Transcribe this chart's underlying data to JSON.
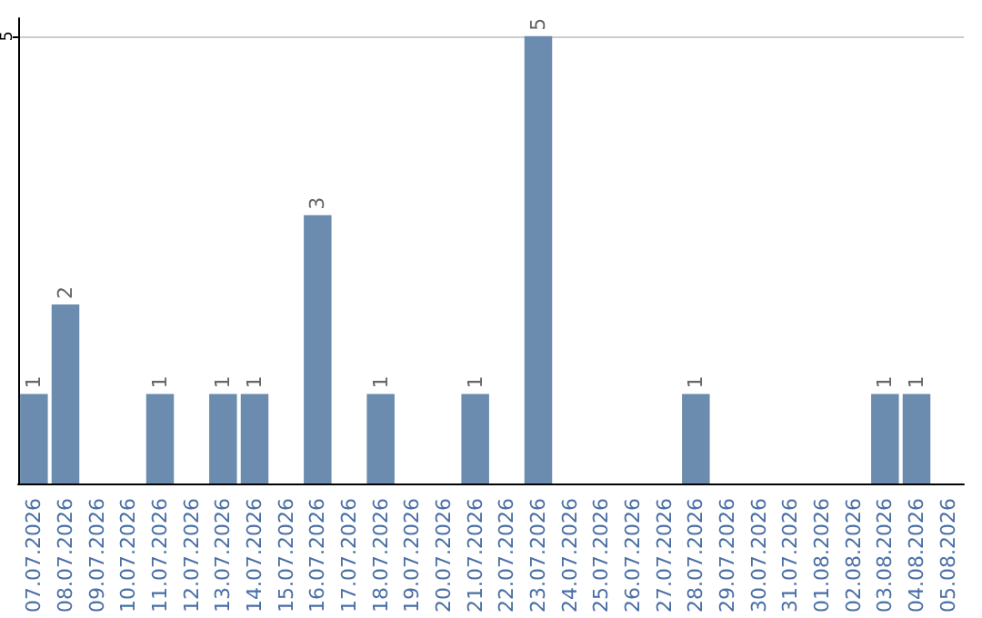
{
  "chart_data": {
    "type": "bar",
    "categories": [
      "07.07.2026",
      "08.07.2026",
      "09.07.2026",
      "10.07.2026",
      "11.07.2026",
      "12.07.2026",
      "13.07.2026",
      "14.07.2026",
      "15.07.2026",
      "16.07.2026",
      "17.07.2026",
      "18.07.2026",
      "19.07.2026",
      "20.07.2026",
      "21.07.2026",
      "22.07.2026",
      "23.07.2026",
      "24.07.2026",
      "25.07.2026",
      "26.07.2026",
      "27.07.2026",
      "28.07.2026",
      "29.07.2026",
      "30.07.2026",
      "31.07.2026",
      "01.08.2026",
      "02.08.2026",
      "03.08.2026",
      "04.08.2026",
      "05.08.2026"
    ],
    "values": [
      1,
      2,
      0,
      0,
      1,
      0,
      1,
      1,
      0,
      3,
      0,
      1,
      0,
      0,
      1,
      0,
      5,
      0,
      0,
      0,
      0,
      1,
      0,
      0,
      0,
      0,
      0,
      1,
      1,
      0
    ],
    "value_labels": [
      "1",
      "2",
      null,
      null,
      "1",
      null,
      "1",
      "1",
      null,
      "3",
      null,
      "1",
      null,
      null,
      "1",
      null,
      "5",
      null,
      null,
      null,
      null,
      "1",
      null,
      null,
      null,
      null,
      null,
      "1",
      "1",
      null
    ],
    "color": "#6b8cae",
    "ylim": [
      0,
      5.2
    ],
    "yticks": [
      5
    ],
    "grid": "y"
  }
}
